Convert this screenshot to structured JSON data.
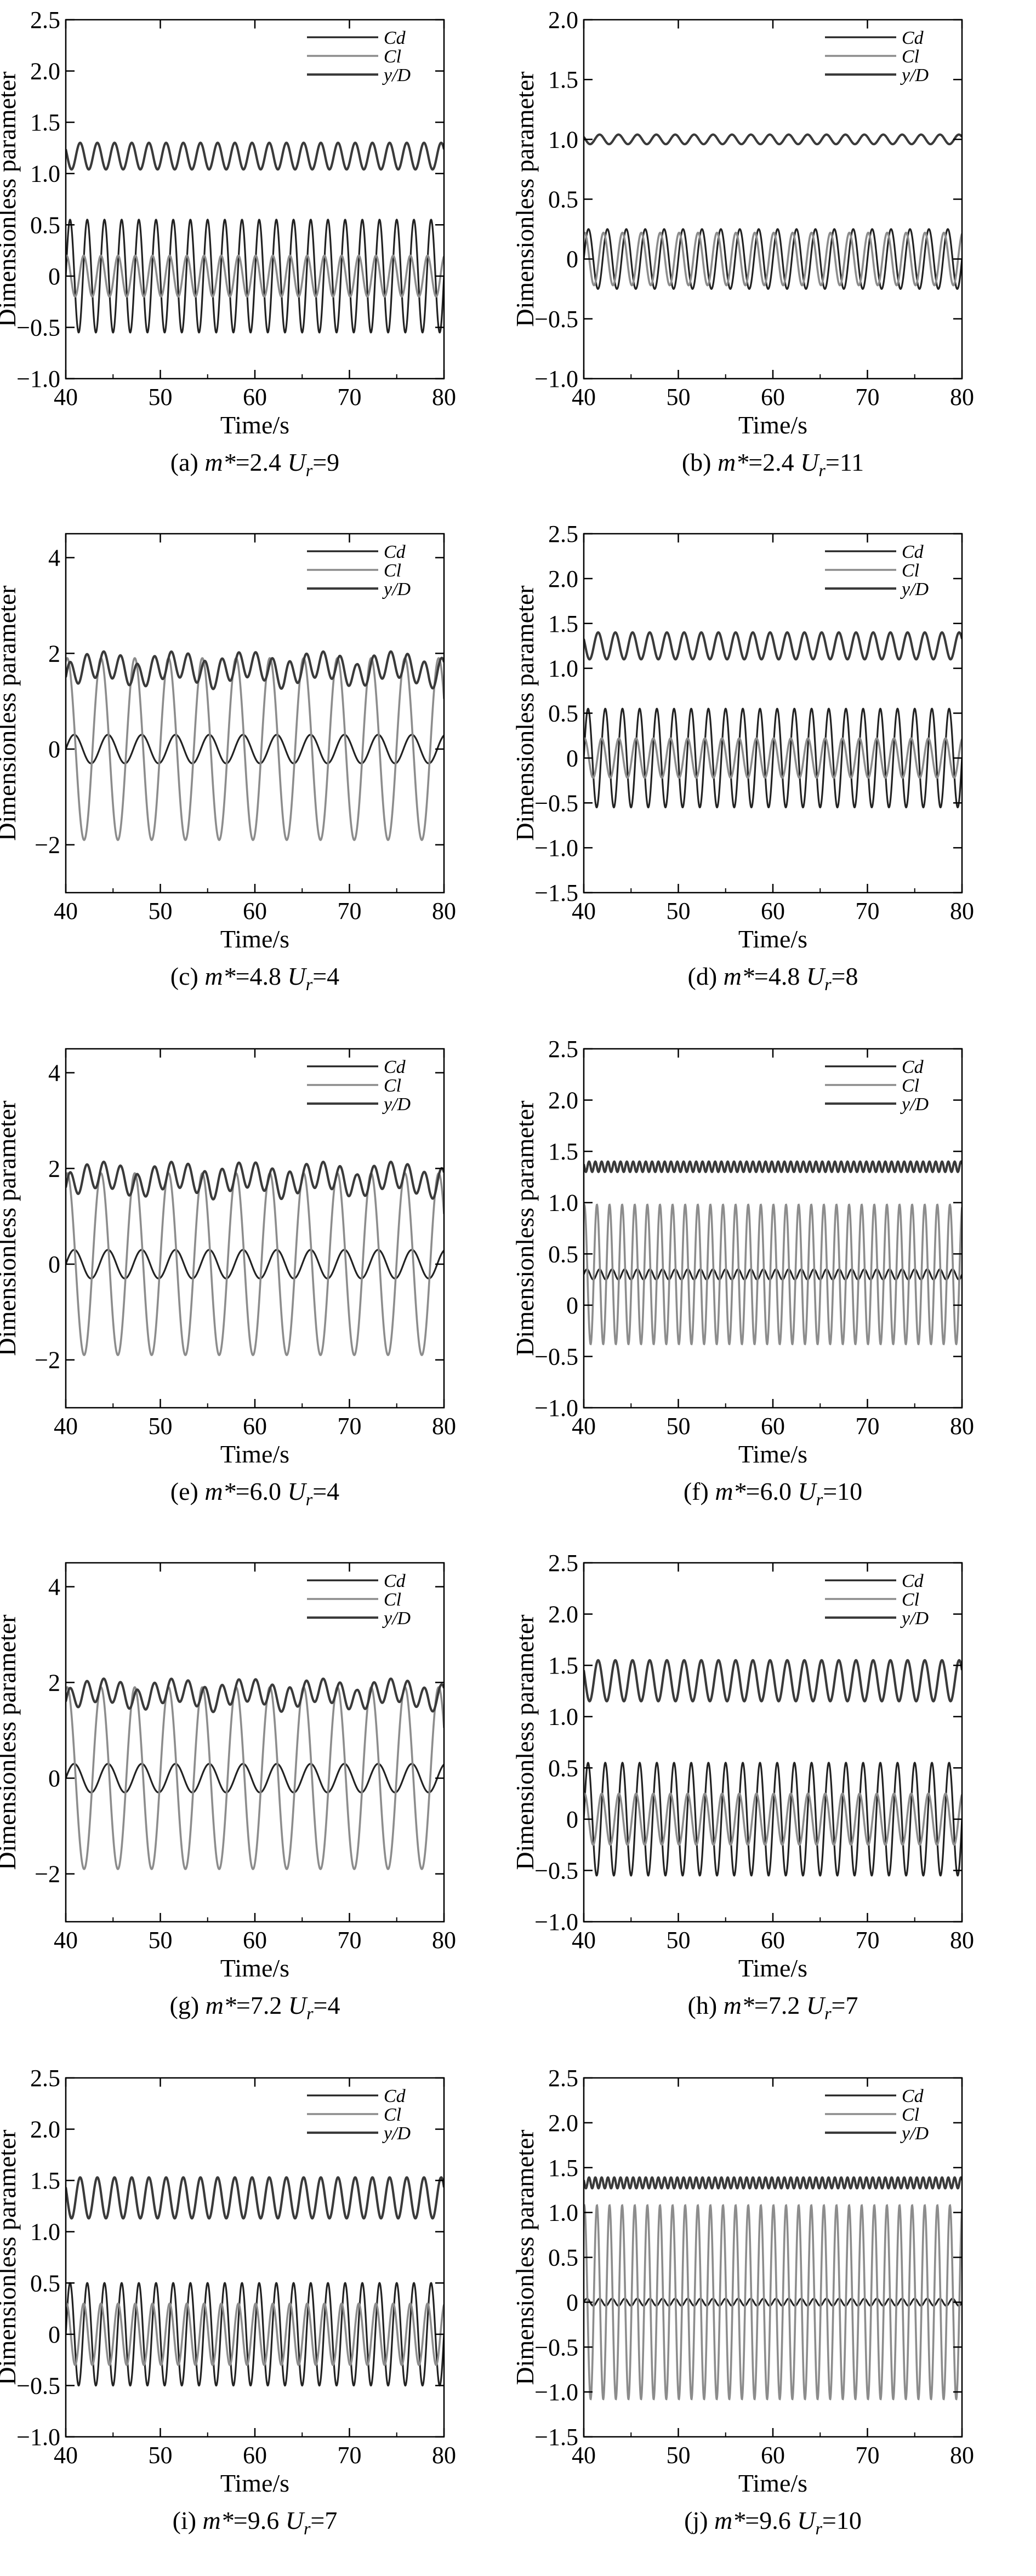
{
  "figure": {
    "background": "#ffffff",
    "colors": {
      "Cd": "#222222",
      "Cl": "#8c8c8c",
      "yD": "#3a3a3a",
      "axis": "#000000"
    }
  },
  "chart_data": [
    {
      "type": "line",
      "caption": {
        "label": "(a) ",
        "mass": "m*",
        "massval": "=2.4 ",
        "ur": "U",
        "sub": "r",
        "urval": "=9"
      },
      "xlabel": "Time/s",
      "ylabel": "Dimensionless parameter",
      "xlim": [
        40,
        80
      ],
      "ylim": [
        -1.0,
        2.5
      ],
      "xticks": [
        "40",
        "50",
        "60",
        "70",
        "80"
      ],
      "yticks": [
        "−1.0",
        "−0.5",
        "0",
        "0.5",
        "1.0",
        "1.5",
        "2.0",
        "2.5"
      ],
      "legend": [
        "Cd",
        "Cl",
        "y/D"
      ],
      "series": [
        {
          "name": "Cd",
          "base": 0.0,
          "amp": 0.55,
          "freq": 0.55
        },
        {
          "name": "Cl",
          "base": 0.0,
          "amp": 0.2,
          "freq": 0.55
        },
        {
          "name": "y/D",
          "base": 1.17,
          "amp": 0.13,
          "freq": 0.55
        }
      ]
    },
    {
      "type": "line",
      "caption": {
        "label": "(b) ",
        "mass": "m*",
        "massval": "=2.4 ",
        "ur": "U",
        "sub": "r",
        "urval": "=11"
      },
      "xlabel": "Time/s",
      "ylabel": "Dimensionless parameter",
      "xlim": [
        40,
        80
      ],
      "ylim": [
        -1.0,
        2.0
      ],
      "xticks": [
        "40",
        "50",
        "60",
        "70",
        "80"
      ],
      "yticks": [
        "−1.0",
        "−0.5",
        "0",
        "0.5",
        "1.0",
        "1.5",
        "2.0"
      ],
      "legend": [
        "Cd",
        "Cl",
        "y/D"
      ],
      "series": [
        {
          "name": "Cd",
          "base": 0.0,
          "amp": 0.25,
          "freq": 0.5
        },
        {
          "name": "Cl",
          "base": 0.0,
          "amp": 0.22,
          "freq": 0.5
        },
        {
          "name": "y/D",
          "base": 1.0,
          "amp": 0.04,
          "freq": 0.5
        }
      ]
    },
    {
      "type": "line",
      "caption": {
        "label": "(c) ",
        "mass": "m*",
        "massval": "=4.8 ",
        "ur": "U",
        "sub": "r",
        "urval": "=4"
      },
      "xlabel": "Time/s",
      "ylabel": "Dimensionless parameter",
      "xlim": [
        40,
        80
      ],
      "ylim": [
        -3,
        4.5
      ],
      "xticks": [
        "40",
        "50",
        "60",
        "70",
        "80"
      ],
      "yticks": [
        "−2",
        "0",
        "2",
        "4"
      ],
      "legend": [
        "Cd",
        "Cl",
        "y/D"
      ],
      "series": [
        {
          "name": "Cd",
          "base": 0.0,
          "amp": 0.3,
          "freq": 0.28
        },
        {
          "name": "Cl",
          "base": 0.0,
          "amp": 1.9,
          "freq": 0.28
        },
        {
          "name": "y/D",
          "base": 1.5,
          "amp": 0.45,
          "freq": 0.56
        }
      ]
    },
    {
      "type": "line",
      "caption": {
        "label": "(d) ",
        "mass": "m*",
        "massval": "=4.8 ",
        "ur": "U",
        "sub": "r",
        "urval": "=8"
      },
      "xlabel": "Time/s",
      "ylabel": "Dimensionless parameter",
      "xlim": [
        40,
        80
      ],
      "ylim": [
        -1.5,
        2.5
      ],
      "xticks": [
        "40",
        "50",
        "60",
        "70",
        "80"
      ],
      "yticks": [
        "−1.5",
        "−1.0",
        "−0.5",
        "0",
        "0.5",
        "1.0",
        "1.5",
        "2.0",
        "2.5"
      ],
      "legend": [
        "Cd",
        "Cl",
        "y/D"
      ],
      "series": [
        {
          "name": "Cd",
          "base": 0.0,
          "amp": 0.55,
          "freq": 0.55
        },
        {
          "name": "Cl",
          "base": 0.0,
          "amp": 0.22,
          "freq": 0.55
        },
        {
          "name": "y/D",
          "base": 1.25,
          "amp": 0.15,
          "freq": 0.55
        }
      ]
    },
    {
      "type": "line",
      "caption": {
        "label": "(e) ",
        "mass": "m*",
        "massval": "=6.0 ",
        "ur": "U",
        "sub": "r",
        "urval": "=4"
      },
      "xlabel": "Time/s",
      "ylabel": "Dimensionless parameter",
      "xlim": [
        40,
        80
      ],
      "ylim": [
        -3,
        4.5
      ],
      "xticks": [
        "40",
        "50",
        "60",
        "70",
        "80"
      ],
      "yticks": [
        "−2",
        "0",
        "2",
        "4"
      ],
      "legend": [
        "Cd",
        "Cl",
        "y/D"
      ],
      "series": [
        {
          "name": "Cd",
          "base": 0.0,
          "amp": 0.3,
          "freq": 0.28
        },
        {
          "name": "Cl",
          "base": 0.0,
          "amp": 1.9,
          "freq": 0.28
        },
        {
          "name": "y/D",
          "base": 1.6,
          "amp": 0.45,
          "freq": 0.56
        }
      ]
    },
    {
      "type": "line",
      "caption": {
        "label": "(f) ",
        "mass": "m*",
        "massval": "=6.0 ",
        "ur": "U",
        "sub": "r",
        "urval": "=10"
      },
      "xlabel": "Time/s",
      "ylabel": "Dimensionless parameter",
      "xlim": [
        40,
        80
      ],
      "ylim": [
        -1.0,
        2.5
      ],
      "xticks": [
        "40",
        "50",
        "60",
        "70",
        "80"
      ],
      "yticks": [
        "−1.0",
        "−0.5",
        "0",
        "0.5",
        "1.0",
        "1.5",
        "2.0",
        "2.5"
      ],
      "legend": [
        "Cd",
        "Cl",
        "y/D"
      ],
      "series": [
        {
          "name": "Cd",
          "base": 0.3,
          "amp": 0.05,
          "freq": 0.75
        },
        {
          "name": "Cl",
          "base": 0.3,
          "amp": 0.68,
          "freq": 0.75
        },
        {
          "name": "y/D",
          "base": 1.35,
          "amp": 0.05,
          "freq": 1.5
        }
      ]
    },
    {
      "type": "line",
      "caption": {
        "label": "(g) ",
        "mass": "m*",
        "massval": "=7.2 ",
        "ur": "U",
        "sub": "r",
        "urval": "=4"
      },
      "xlabel": "Time/s",
      "ylabel": "Dimensionless parameter",
      "xlim": [
        40,
        80
      ],
      "ylim": [
        -3,
        4.5
      ],
      "xticks": [
        "40",
        "50",
        "60",
        "70",
        "80"
      ],
      "yticks": [
        "−2",
        "0",
        "2",
        "4"
      ],
      "legend": [
        "Cd",
        "Cl",
        "y/D"
      ],
      "series": [
        {
          "name": "Cd",
          "base": 0.0,
          "amp": 0.3,
          "freq": 0.28
        },
        {
          "name": "Cl",
          "base": 0.0,
          "amp": 1.9,
          "freq": 0.28
        },
        {
          "name": "y/D",
          "base": 1.6,
          "amp": 0.4,
          "freq": 0.56
        }
      ]
    },
    {
      "type": "line",
      "caption": {
        "label": "(h) ",
        "mass": "m*",
        "massval": "=7.2 ",
        "ur": "U",
        "sub": "r",
        "urval": "=7"
      },
      "xlabel": "Time/s",
      "ylabel": "Dimensionless parameter",
      "xlim": [
        40,
        80
      ],
      "ylim": [
        -1.0,
        2.5
      ],
      "xticks": [
        "40",
        "50",
        "60",
        "70",
        "80"
      ],
      "yticks": [
        "−1.0",
        "−0.5",
        "0",
        "0.5",
        "1.0",
        "1.5",
        "2.0",
        "2.5"
      ],
      "legend": [
        "Cd",
        "Cl",
        "y/D"
      ],
      "series": [
        {
          "name": "Cd",
          "base": 0.0,
          "amp": 0.55,
          "freq": 0.55
        },
        {
          "name": "Cl",
          "base": 0.0,
          "amp": 0.25,
          "freq": 0.55
        },
        {
          "name": "y/D",
          "base": 1.35,
          "amp": 0.2,
          "freq": 0.55
        }
      ]
    },
    {
      "type": "line",
      "caption": {
        "label": "(i) ",
        "mass": "m*",
        "massval": "=9.6 ",
        "ur": "U",
        "sub": "r",
        "urval": "=7"
      },
      "xlabel": "Time/s",
      "ylabel": "Dimensionless parameter",
      "xlim": [
        40,
        80
      ],
      "ylim": [
        -1.0,
        2.5
      ],
      "xticks": [
        "40",
        "50",
        "60",
        "70",
        "80"
      ],
      "yticks": [
        "−1.0",
        "−0.5",
        "0",
        "0.5",
        "1.0",
        "1.5",
        "2.0",
        "2.5"
      ],
      "legend": [
        "Cd",
        "Cl",
        "y/D"
      ],
      "series": [
        {
          "name": "Cd",
          "base": 0.0,
          "amp": 0.5,
          "freq": 0.55
        },
        {
          "name": "Cl",
          "base": 0.0,
          "amp": 0.3,
          "freq": 0.55
        },
        {
          "name": "y/D",
          "base": 1.33,
          "amp": 0.2,
          "freq": 0.55
        }
      ]
    },
    {
      "type": "line",
      "caption": {
        "label": "(j) ",
        "mass": "m*",
        "massval": "=9.6 ",
        "ur": "U",
        "sub": "r",
        "urval": "=10"
      },
      "xlabel": "Time/s",
      "ylabel": "Dimensionless parameter",
      "xlim": [
        40,
        80
      ],
      "ylim": [
        -1.5,
        2.5
      ],
      "xticks": [
        "40",
        "50",
        "60",
        "70",
        "80"
      ],
      "yticks": [
        "−1.5",
        "−1.0",
        "−0.5",
        "0",
        "0.5",
        "1.0",
        "1.5",
        "2.0",
        "2.5"
      ],
      "legend": [
        "Cd",
        "Cl",
        "y/D"
      ],
      "series": [
        {
          "name": "Cd",
          "base": 0.0,
          "amp": 0.04,
          "freq": 0.75
        },
        {
          "name": "Cl",
          "base": 0.0,
          "amp": 1.08,
          "freq": 0.75
        },
        {
          "name": "y/D",
          "base": 1.33,
          "amp": 0.06,
          "freq": 1.5
        }
      ]
    }
  ]
}
